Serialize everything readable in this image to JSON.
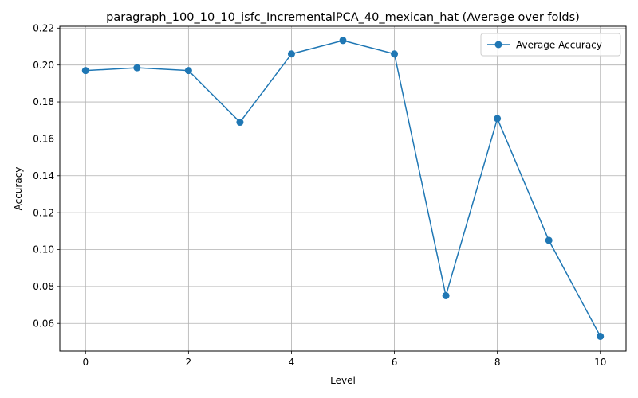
{
  "chart_data": {
    "type": "line",
    "title": "paragraph_100_10_10_isfc_IncrementalPCA_40_mexican_hat (Average over folds)",
    "xlabel": "Level",
    "ylabel": "Accuracy",
    "xlim": [
      -0.5,
      10.5
    ],
    "ylim": [
      0.045,
      0.221
    ],
    "xticks": [
      0,
      2,
      4,
      6,
      8,
      10
    ],
    "yticks": [
      0.06,
      0.08,
      0.1,
      0.12,
      0.14,
      0.16,
      0.18,
      0.2,
      0.22
    ],
    "ytick_labels": [
      "0.06",
      "0.08",
      "0.10",
      "0.12",
      "0.14",
      "0.16",
      "0.18",
      "0.20",
      "0.22"
    ],
    "grid": true,
    "legend_position": "top-right",
    "x": [
      0,
      1,
      2,
      3,
      4,
      5,
      6,
      7,
      8,
      9,
      10
    ],
    "series": [
      {
        "name": "Average Accuracy",
        "color": "#1f77b4",
        "marker": "circle",
        "values": [
          0.197,
          0.1985,
          0.197,
          0.169,
          0.206,
          0.2133,
          0.206,
          0.075,
          0.171,
          0.105,
          0.053
        ]
      }
    ]
  }
}
